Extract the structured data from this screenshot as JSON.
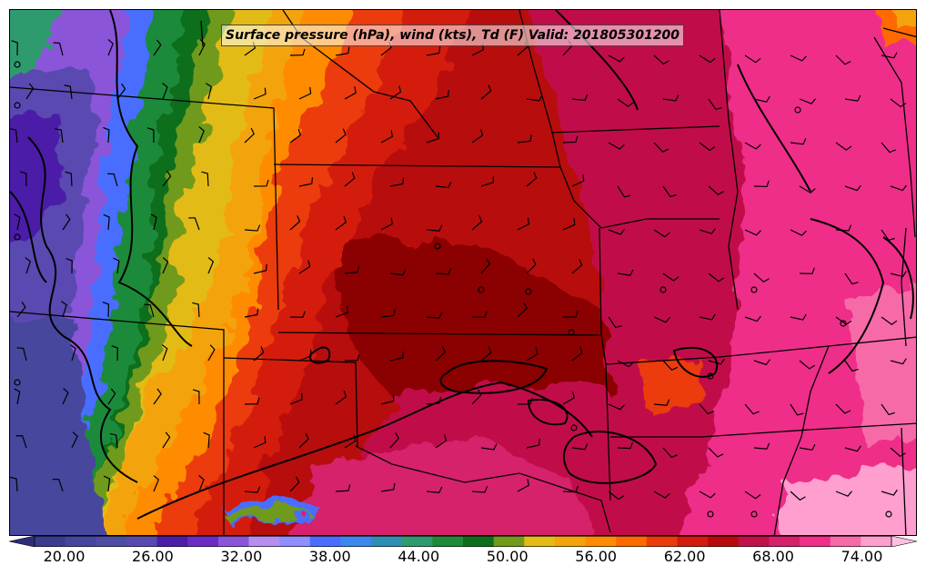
{
  "title": "Surface pressure (hPa), wind (kts), Td (F) Valid: 201805301200",
  "colorbar": {
    "min": 18,
    "max": 76,
    "step": 2,
    "tick_labels": [
      "20.00",
      "26.00",
      "32.00",
      "38.00",
      "44.00",
      "50.00",
      "56.00",
      "62.00",
      "68.00",
      "74.00"
    ],
    "colors": [
      "#3b3b8f",
      "#46469e",
      "#4d4da6",
      "#5a4ab0",
      "#4b1ea8",
      "#6a2cc4",
      "#8a55d8",
      "#b58ef0",
      "#8f8fff",
      "#4a6eff",
      "#3c88ee",
      "#2e8fb5",
      "#2e9b6e",
      "#1f8a3a",
      "#0c6e1a",
      "#6f9a1c",
      "#e3bb14",
      "#f3a40a",
      "#ff8c00",
      "#ff6a00",
      "#ec3b0a",
      "#d41a0e",
      "#b80a0a",
      "#c0104a",
      "#d6206a",
      "#ef2f89",
      "#f76aa8",
      "#ff9fd0"
    ],
    "under_color": "#2e2e7a",
    "over_color": "#ffc0e0"
  }
}
